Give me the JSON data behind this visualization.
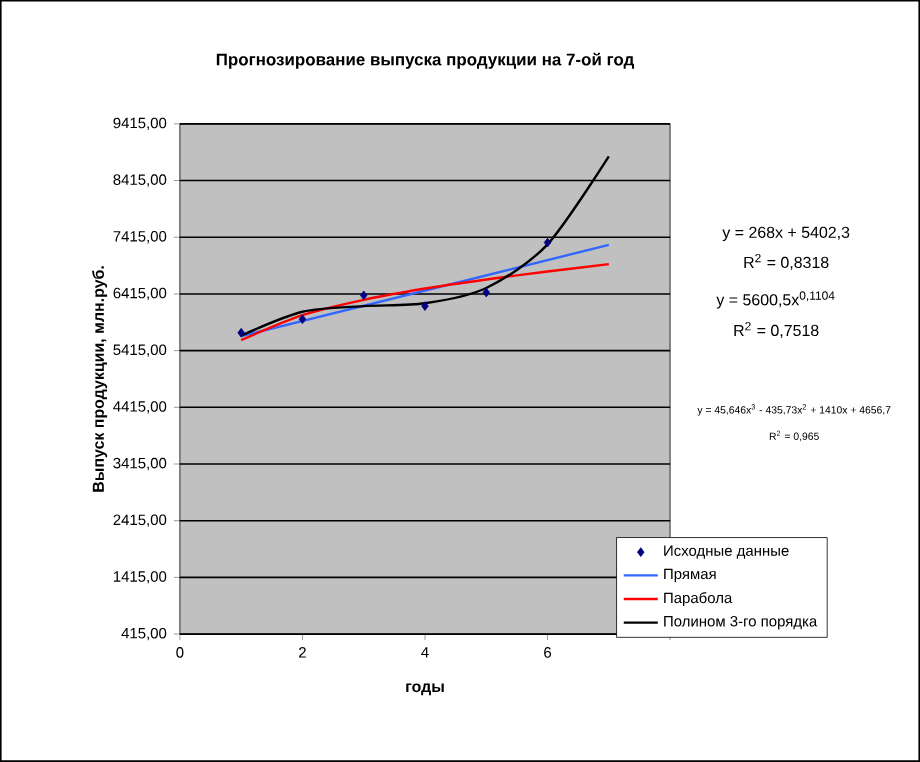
{
  "chart_data": {
    "type": "line",
    "title": "Прогнозирование выпуска продукции на 7-ой год",
    "xlabel": "годы",
    "ylabel": "Выпуск продукции, млн.руб.",
    "xlim": [
      0,
      8
    ],
    "xticks": [
      0,
      2,
      4,
      6,
      {
        "value": 8,
        "label": null
      }
    ],
    "ylim": [
      415,
      9415
    ],
    "yticks": [
      {
        "value": 415,
        "label": "415,00"
      },
      {
        "value": 1415,
        "label": "1415,00"
      },
      {
        "value": 2415,
        "label": "2415,00"
      },
      {
        "value": 3415,
        "label": "3415,00"
      },
      {
        "value": 4415,
        "label": "4415,00"
      },
      {
        "value": 5415,
        "label": "5415,00"
      },
      {
        "value": 6415,
        "label": "6415,00"
      },
      {
        "value": 7415,
        "label": "7415,00"
      },
      {
        "value": 8415,
        "label": "8415,00"
      },
      {
        "value": 9415,
        "label": "9415,00"
      }
    ],
    "grid": "y",
    "legend": "bottom right",
    "line_style": "solid",
    "series": [
      {
        "name": "Исходные данные",
        "type": "scatter",
        "marker": "diamond",
        "color": "#000080",
        "x": [
          1,
          2,
          3,
          4,
          5,
          6
        ],
        "values": [
          5730,
          5970,
          6390,
          6200,
          6440,
          7320
        ]
      },
      {
        "name": "Прямая",
        "type": "line",
        "color": "#3366ff",
        "x": [
          1,
          7
        ],
        "values": [
          5670,
          7280
        ]
      },
      {
        "name": "Парабола",
        "type": "line",
        "color": "#ff0000",
        "x": [
          1,
          2,
          3,
          4,
          5,
          6,
          7
        ],
        "values": [
          5600,
          6040,
          6310,
          6510,
          6670,
          6810,
          6940
        ]
      },
      {
        "name": "Полином 3-го порядка",
        "type": "line",
        "color": "#000000",
        "x": [
          1,
          2,
          3,
          4,
          5,
          6,
          7
        ],
        "values": [
          5680,
          6100,
          6200,
          6250,
          6520,
          7290,
          8840
        ]
      }
    ],
    "annotations": [
      "y = 268x + 5402,3",
      "R$^{2}$ = 0,8318",
      "y = 5600,5x$^{0,1104}$",
      "R$^{2}$ = 0,7518",
      "y = 45,646x$^{3}$ - 435,73x$^{2}$ + 1410x + 4656,7",
      "R$^{2}$ = 0,965"
    ]
  }
}
